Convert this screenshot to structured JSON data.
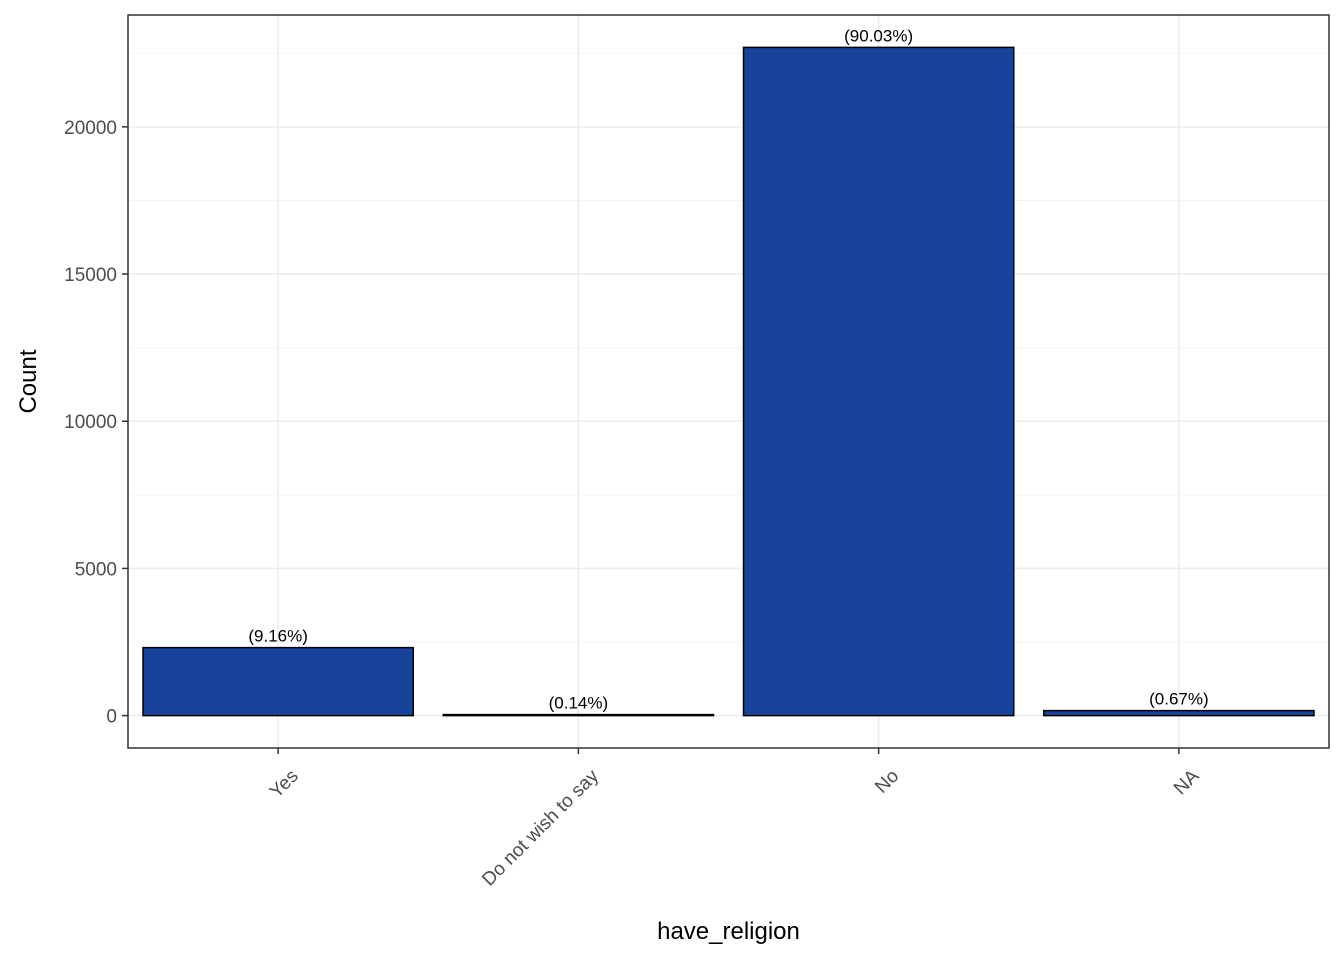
{
  "chart_data": {
    "type": "bar",
    "categories": [
      "Yes",
      "Do not wish to say",
      "No",
      "NA"
    ],
    "values": [
      2310,
      35,
      22700,
      170
    ],
    "data_labels": [
      "(9.16%)",
      "(0.14%)",
      "(90.03%)",
      "(0.67%)"
    ],
    "xlabel": "have_religion",
    "ylabel": "Count",
    "ylim": [
      -1100,
      23800
    ],
    "yticks": [
      0,
      5000,
      10000,
      15000,
      20000
    ],
    "ytick_labels": [
      "0",
      "5000",
      "10000",
      "15000",
      "20000"
    ],
    "grid": true,
    "legend": "none",
    "colors": {
      "bar_fill": "#17449A",
      "bar_stroke": "#000000",
      "panel_border": "#333333",
      "grid_major": "#EBEBEB",
      "grid_minor": "#F5F5F5"
    }
  }
}
